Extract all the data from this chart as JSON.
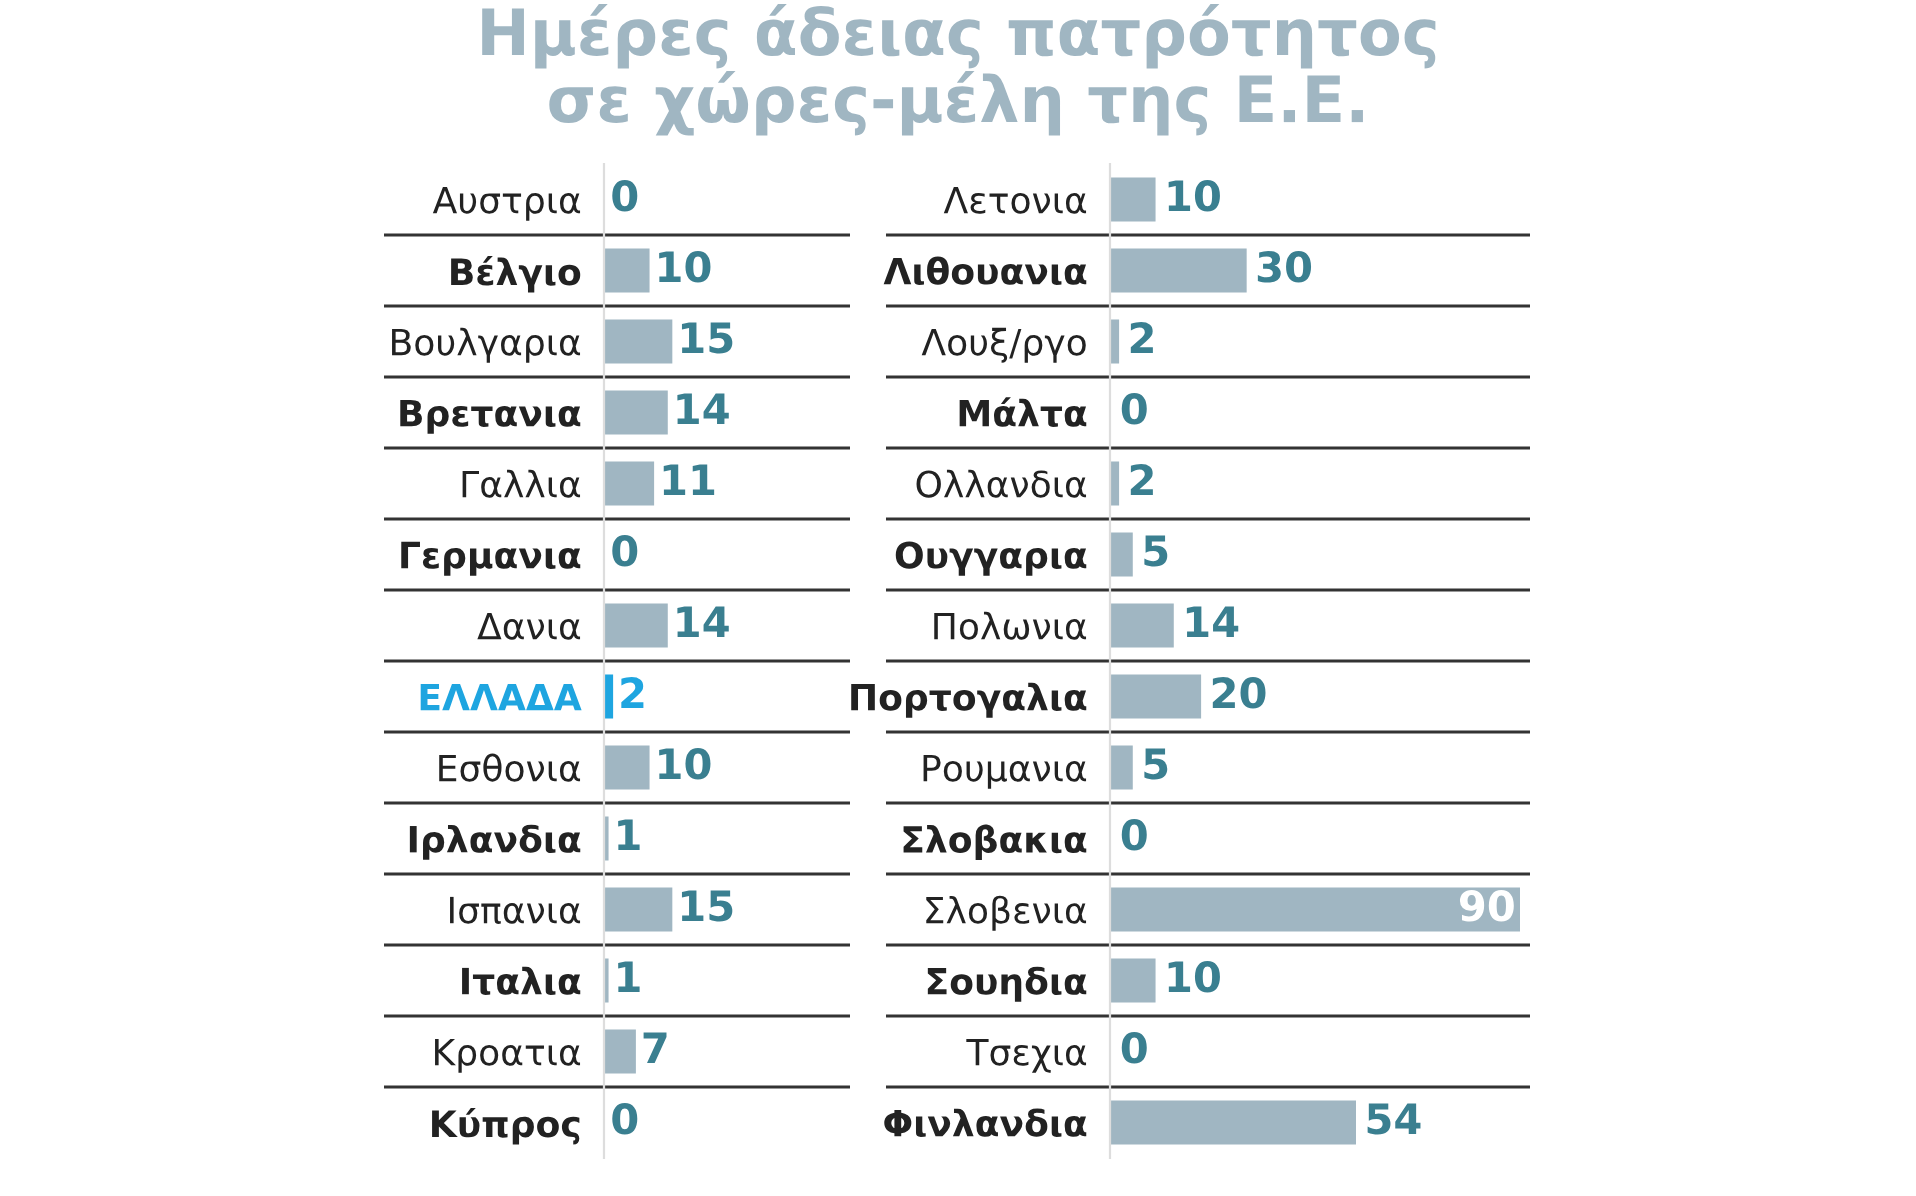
{
  "chart_data": [
    {
      "type": "bar",
      "orientation": "horizontal",
      "title": "Ημέρες άδειας πατρότητος\nσε χώρες-μέλη της Ε.Ε.",
      "data_labels": true,
      "grid": false,
      "legend": false,
      "categories": [
        "Αυστρια",
        "Βέλγιο",
        "Βουλγαρια",
        "Βρετανια",
        "Γαλλια",
        "Γερμανια",
        "Δανια",
        "ΕΛΛΑΔΑ",
        "Εσθονια",
        "Ιρλανδια",
        "Ισπανια",
        "Ιταλια",
        "Κροατια",
        "Κύπρος"
      ],
      "values": [
        0,
        10,
        15,
        14,
        11,
        0,
        14,
        2,
        10,
        1,
        15,
        1,
        7,
        0
      ],
      "colors": [
        "#a0b6c2",
        "#a0b6c2",
        "#a0b6c2",
        "#a0b6c2",
        "#a0b6c2",
        "#a0b6c2",
        "#a0b6c2",
        "#1ea5e0",
        "#a0b6c2",
        "#a0b6c2",
        "#a0b6c2",
        "#a0b6c2",
        "#a0b6c2",
        "#a0b6c2"
      ]
    },
    {
      "type": "bar",
      "orientation": "horizontal",
      "data_labels": true,
      "grid": false,
      "legend": false,
      "categories": [
        "Λετονια",
        "Λιθουανια",
        "Λουξ/ργο",
        "Μάλτα",
        "Ολλανδια",
        "Ουγγαρια",
        "Πολωνια",
        "Πορτογαλια",
        "Ρουμανια",
        "Σλοβακια",
        "Σλοβενια",
        "Σουηδια",
        "Τσεχια",
        "Φινλανδια"
      ],
      "values": [
        10,
        30,
        2,
        0,
        2,
        5,
        14,
        20,
        5,
        0,
        90,
        10,
        0,
        54
      ],
      "color": "#a0b6c2"
    }
  ]
}
